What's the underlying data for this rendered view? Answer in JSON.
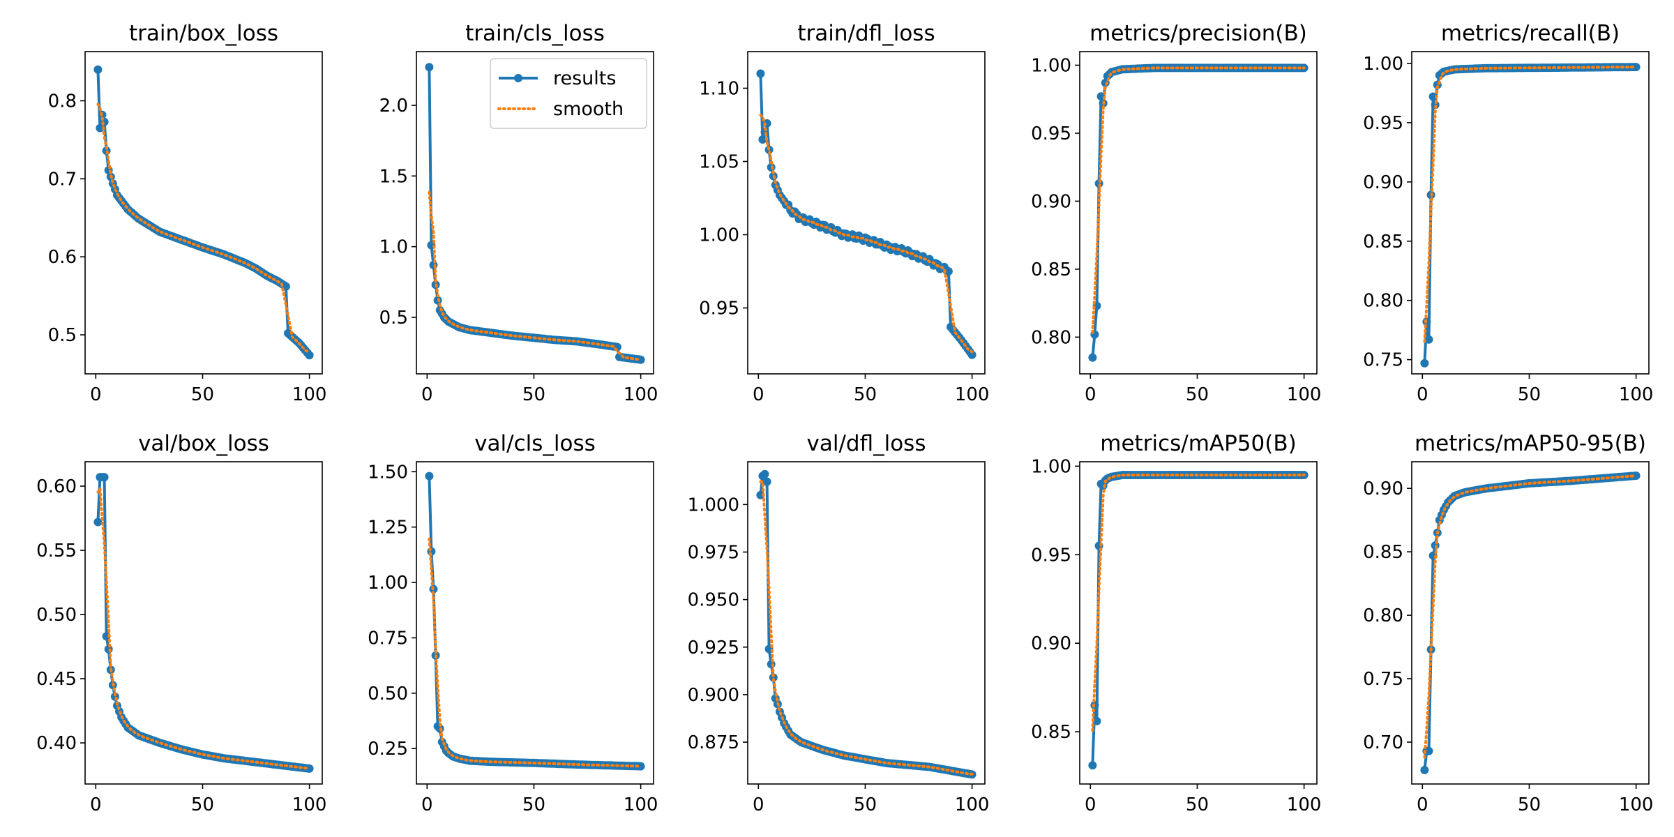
{
  "colors": {
    "results": "#1f77b4",
    "smooth": "#ff7f0e",
    "axes": "#000000",
    "legend_border": "#cccccc"
  },
  "legend": {
    "results": "results",
    "smooth": "smooth",
    "placement": "upper-right of train/cls_loss"
  },
  "chart_data": [
    {
      "type": "line",
      "title": "train/box_loss",
      "xlim": [
        -5,
        106
      ],
      "ylim": [
        0.45,
        0.863
      ],
      "xticks": [
        0,
        50,
        100
      ],
      "yticks": [
        0.5,
        0.6,
        0.7,
        0.8
      ],
      "ytick_labels": [
        "0.5",
        "0.6",
        "0.7",
        "0.8"
      ],
      "start": 0.84,
      "anchors": [
        [
          2,
          0.765
        ],
        [
          3,
          0.782
        ],
        [
          4,
          0.773
        ],
        [
          5,
          0.736
        ],
        [
          6,
          0.711
        ],
        [
          8,
          0.694
        ],
        [
          10,
          0.679
        ],
        [
          15,
          0.661
        ],
        [
          20,
          0.649
        ],
        [
          30,
          0.632
        ],
        [
          40,
          0.622
        ],
        [
          50,
          0.612
        ],
        [
          60,
          0.603
        ],
        [
          70,
          0.592
        ],
        [
          75,
          0.585
        ],
        [
          80,
          0.576
        ],
        [
          85,
          0.569
        ],
        [
          89,
          0.562
        ],
        [
          90,
          0.502
        ],
        [
          95,
          0.49
        ],
        [
          100,
          0.474
        ]
      ],
      "noise": 0,
      "legend": false
    },
    {
      "type": "line",
      "title": "train/cls_loss",
      "xlim": [
        -5,
        106
      ],
      "ylim": [
        0.1,
        2.38
      ],
      "xticks": [
        0,
        50,
        100
      ],
      "yticks": [
        0.5,
        1.0,
        1.5,
        2.0
      ],
      "ytick_labels": [
        "0.5",
        "1.0",
        "1.5",
        "2.0"
      ],
      "start": 2.27,
      "anchors": [
        [
          2,
          1.01
        ],
        [
          3,
          0.87
        ],
        [
          4,
          0.73
        ],
        [
          5,
          0.62
        ],
        [
          6,
          0.55
        ],
        [
          8,
          0.5
        ],
        [
          10,
          0.47
        ],
        [
          15,
          0.43
        ],
        [
          20,
          0.41
        ],
        [
          30,
          0.39
        ],
        [
          40,
          0.37
        ],
        [
          50,
          0.355
        ],
        [
          60,
          0.34
        ],
        [
          70,
          0.33
        ],
        [
          80,
          0.31
        ],
        [
          89,
          0.29
        ],
        [
          90,
          0.22
        ],
        [
          100,
          0.2
        ]
      ],
      "noise": 0,
      "legend": true
    },
    {
      "type": "line",
      "title": "train/dfl_loss",
      "xlim": [
        -5,
        106
      ],
      "ylim": [
        0.905,
        1.125
      ],
      "xticks": [
        0,
        50,
        100
      ],
      "yticks": [
        0.95,
        1.0,
        1.05,
        1.1
      ],
      "ytick_labels": [
        "0.95",
        "1.00",
        "1.05",
        "1.10"
      ],
      "start": 1.11,
      "anchors": [
        [
          2,
          1.065
        ],
        [
          3,
          1.07
        ],
        [
          4,
          1.076
        ],
        [
          5,
          1.058
        ],
        [
          6,
          1.046
        ],
        [
          8,
          1.034
        ],
        [
          10,
          1.027
        ],
        [
          15,
          1.017
        ],
        [
          20,
          1.011
        ],
        [
          30,
          1.006
        ],
        [
          40,
          1.0
        ],
        [
          50,
          0.997
        ],
        [
          60,
          0.992
        ],
        [
          70,
          0.988
        ],
        [
          80,
          0.982
        ],
        [
          89,
          0.975
        ],
        [
          90,
          0.937
        ],
        [
          95,
          0.928
        ],
        [
          100,
          0.918
        ]
      ],
      "noise": 0.0015,
      "legend": false
    },
    {
      "type": "line",
      "title": "metrics/precision(B)",
      "xlim": [
        -5,
        106
      ],
      "ylim": [
        0.773,
        1.01
      ],
      "xticks": [
        0,
        50,
        100
      ],
      "yticks": [
        0.8,
        0.85,
        0.9,
        0.95,
        1.0
      ],
      "ytick_labels": [
        "0.80",
        "0.85",
        "0.90",
        "0.95",
        "1.00"
      ],
      "start": 0.785,
      "anchors": [
        [
          2,
          0.802
        ],
        [
          3,
          0.823
        ],
        [
          4,
          0.913
        ],
        [
          5,
          0.977
        ],
        [
          6,
          0.972
        ],
        [
          7,
          0.987
        ],
        [
          8,
          0.992
        ],
        [
          10,
          0.995
        ],
        [
          15,
          0.997
        ],
        [
          30,
          0.998
        ],
        [
          100,
          0.998
        ]
      ],
      "noise": 0,
      "legend": false
    },
    {
      "type": "line",
      "title": "metrics/recall(B)",
      "xlim": [
        -5,
        106
      ],
      "ylim": [
        0.738,
        1.01
      ],
      "xticks": [
        0,
        50,
        100
      ],
      "yticks": [
        0.75,
        0.8,
        0.85,
        0.9,
        0.95,
        1.0
      ],
      "ytick_labels": [
        "0.75",
        "0.80",
        "0.85",
        "0.90",
        "0.95",
        "1.00"
      ],
      "start": 0.747,
      "anchors": [
        [
          2,
          0.782
        ],
        [
          3,
          0.767
        ],
        [
          4,
          0.889
        ],
        [
          5,
          0.972
        ],
        [
          6,
          0.965
        ],
        [
          7,
          0.982
        ],
        [
          8,
          0.99
        ],
        [
          10,
          0.993
        ],
        [
          15,
          0.995
        ],
        [
          30,
          0.996
        ],
        [
          100,
          0.997
        ]
      ],
      "noise": 0,
      "legend": false
    },
    {
      "type": "line",
      "title": "val/box_loss",
      "xlim": [
        -5,
        106
      ],
      "ylim": [
        0.368,
        0.619
      ],
      "xticks": [
        0,
        50,
        100
      ],
      "yticks": [
        0.4,
        0.45,
        0.5,
        0.55,
        0.6
      ],
      "ytick_labels": [
        "0.40",
        "0.45",
        "0.50",
        "0.55",
        "0.60"
      ],
      "start": 0.572,
      "anchors": [
        [
          2,
          0.607
        ],
        [
          3,
          0.607
        ],
        [
          4,
          0.607
        ],
        [
          5,
          0.483
        ],
        [
          6,
          0.473
        ],
        [
          7,
          0.457
        ],
        [
          8,
          0.445
        ],
        [
          9,
          0.436
        ],
        [
          10,
          0.429
        ],
        [
          12,
          0.42
        ],
        [
          15,
          0.412
        ],
        [
          20,
          0.406
        ],
        [
          30,
          0.4
        ],
        [
          40,
          0.395
        ],
        [
          50,
          0.391
        ],
        [
          60,
          0.388
        ],
        [
          70,
          0.386
        ],
        [
          80,
          0.384
        ],
        [
          90,
          0.382
        ],
        [
          100,
          0.38
        ]
      ],
      "noise": 0,
      "legend": false
    },
    {
      "type": "line",
      "title": "val/cls_loss",
      "xlim": [
        -5,
        106
      ],
      "ylim": [
        0.09,
        1.545
      ],
      "xticks": [
        0,
        50,
        100
      ],
      "yticks": [
        0.25,
        0.5,
        0.75,
        1.0,
        1.25,
        1.5
      ],
      "ytick_labels": [
        "0.25",
        "0.50",
        "0.75",
        "1.00",
        "1.25",
        "1.50"
      ],
      "start": 1.48,
      "anchors": [
        [
          2,
          1.14
        ],
        [
          3,
          0.97
        ],
        [
          4,
          0.67
        ],
        [
          5,
          0.35
        ],
        [
          6,
          0.34
        ],
        [
          7,
          0.28
        ],
        [
          8,
          0.26
        ],
        [
          9,
          0.24
        ],
        [
          10,
          0.23
        ],
        [
          12,
          0.215
        ],
        [
          15,
          0.205
        ],
        [
          20,
          0.195
        ],
        [
          30,
          0.19
        ],
        [
          50,
          0.185
        ],
        [
          70,
          0.178
        ],
        [
          100,
          0.17
        ]
      ],
      "noise": 0,
      "legend": false
    },
    {
      "type": "line",
      "title": "val/dfl_loss",
      "xlim": [
        -5,
        106
      ],
      "ylim": [
        0.853,
        1.0225
      ],
      "xticks": [
        0,
        50,
        100
      ],
      "yticks": [
        0.875,
        0.9,
        0.925,
        0.95,
        0.975,
        1.0
      ],
      "ytick_labels": [
        "0.875",
        "0.900",
        "0.925",
        "0.950",
        "0.975",
        "1.000"
      ],
      "start": 1.005,
      "anchors": [
        [
          2,
          1.015
        ],
        [
          3,
          1.016
        ],
        [
          4,
          1.012
        ],
        [
          5,
          0.924
        ],
        [
          6,
          0.916
        ],
        [
          7,
          0.909
        ],
        [
          8,
          0.898
        ],
        [
          9,
          0.895
        ],
        [
          10,
          0.891
        ],
        [
          12,
          0.885
        ],
        [
          15,
          0.879
        ],
        [
          20,
          0.875
        ],
        [
          30,
          0.871
        ],
        [
          40,
          0.868
        ],
        [
          50,
          0.866
        ],
        [
          60,
          0.864
        ],
        [
          70,
          0.863
        ],
        [
          80,
          0.862
        ],
        [
          90,
          0.86
        ],
        [
          100,
          0.858
        ]
      ],
      "noise": 0,
      "legend": false
    },
    {
      "type": "line",
      "title": "metrics/mAP50(B)",
      "xlim": [
        -5,
        106
      ],
      "ylim": [
        0.8205,
        1.0025
      ],
      "xticks": [
        0,
        50,
        100
      ],
      "yticks": [
        0.85,
        0.9,
        0.95,
        1.0
      ],
      "ytick_labels": [
        "0.85",
        "0.90",
        "0.95",
        "1.00"
      ],
      "start": 0.831,
      "anchors": [
        [
          2,
          0.865
        ],
        [
          3,
          0.856
        ],
        [
          4,
          0.955
        ],
        [
          5,
          0.99
        ],
        [
          6,
          0.989
        ],
        [
          7,
          0.992
        ],
        [
          8,
          0.993
        ],
        [
          10,
          0.994
        ],
        [
          15,
          0.995
        ],
        [
          100,
          0.995
        ]
      ],
      "noise": 0,
      "legend": false
    },
    {
      "type": "line",
      "title": "metrics/mAP50-95(B)",
      "xlim": [
        -5,
        106
      ],
      "ylim": [
        0.667,
        0.921
      ],
      "xticks": [
        0,
        50,
        100
      ],
      "yticks": [
        0.7,
        0.75,
        0.8,
        0.85,
        0.9
      ],
      "ytick_labels": [
        "0.70",
        "0.75",
        "0.80",
        "0.85",
        "0.90"
      ],
      "start": 0.678,
      "anchors": [
        [
          2,
          0.693
        ],
        [
          3,
          0.693
        ],
        [
          4,
          0.773
        ],
        [
          5,
          0.847
        ],
        [
          6,
          0.855
        ],
        [
          7,
          0.865
        ],
        [
          8,
          0.875
        ],
        [
          9,
          0.879
        ],
        [
          10,
          0.883
        ],
        [
          12,
          0.889
        ],
        [
          15,
          0.894
        ],
        [
          20,
          0.897
        ],
        [
          30,
          0.9
        ],
        [
          50,
          0.904
        ],
        [
          70,
          0.906
        ],
        [
          100,
          0.91
        ]
      ],
      "noise": 0,
      "legend": false
    }
  ]
}
